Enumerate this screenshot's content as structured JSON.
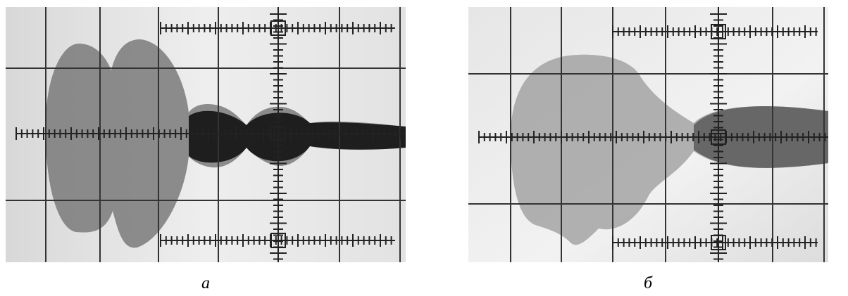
{
  "panels": [
    {
      "label": "а"
    },
    {
      "label": "б"
    }
  ]
}
